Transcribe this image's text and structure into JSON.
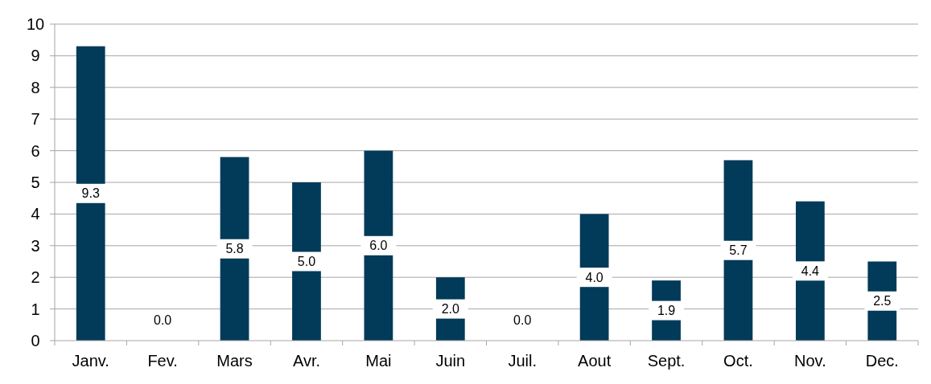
{
  "chart_data": {
    "type": "bar",
    "categories": [
      "Janv.",
      "Fev.",
      "Mars",
      "Avr.",
      "Mai",
      "Juin",
      "Juil.",
      "Aout",
      "Sept.",
      "Oct.",
      "Nov.",
      "Dec."
    ],
    "values": [
      9.3,
      0.0,
      5.8,
      5.0,
      6.0,
      2.0,
      0.0,
      4.0,
      1.9,
      5.7,
      4.4,
      2.5
    ],
    "value_labels": [
      "9.3",
      "0.0",
      "5.8",
      "5.0",
      "6.0",
      "2.0",
      "0.0",
      "4.0",
      "1.9",
      "5.7",
      "4.4",
      "2.5"
    ],
    "color": "#023a5a",
    "ylim": [
      0,
      10
    ],
    "yticks": [
      0,
      1,
      2,
      3,
      4,
      5,
      6,
      7,
      8,
      9,
      10
    ],
    "grid": "y"
  }
}
